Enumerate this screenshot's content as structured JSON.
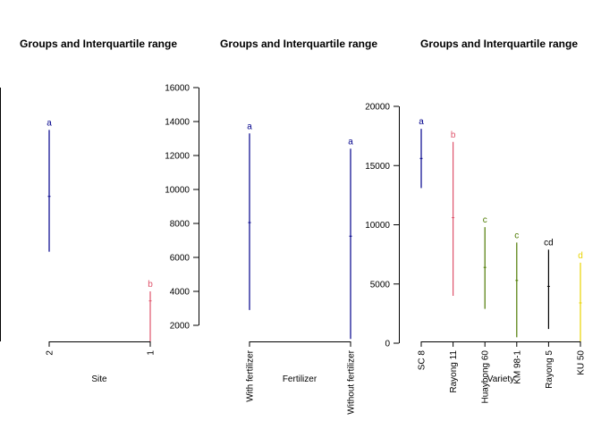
{
  "chart_data": [
    {
      "type": "line",
      "title": "Groups and Interquartile range",
      "xlabel": "Site",
      "ylabel": "",
      "y_axis_shown": false,
      "ylim": [
        1200,
        16000
      ],
      "categories": [
        "2",
        "1"
      ],
      "series": [
        {
          "category": "2",
          "median": 9700,
          "q1": 6500,
          "q3": 13550,
          "group": "a",
          "color": "#00008B"
        },
        {
          "category": "1",
          "median": 3650,
          "q1": 900,
          "q3": 4200,
          "group": "b",
          "color": "#DF536B"
        }
      ]
    },
    {
      "type": "line",
      "title": "Groups and Interquartile range",
      "xlabel": "Fertilizer",
      "ylabel": "",
      "ylim": [
        1200,
        16000
      ],
      "yticks": [
        2000,
        4000,
        6000,
        8000,
        10000,
        12000,
        14000,
        16000
      ],
      "categories": [
        "With fertilizer",
        "Without fertilizer"
      ],
      "series": [
        {
          "category": "With fertilizer",
          "median": 8050,
          "q1": 2900,
          "q3": 13300,
          "group": "a",
          "color": "#00008B"
        },
        {
          "category": "Without fertilizer",
          "median": 7250,
          "q1": 1200,
          "q3": 12400,
          "group": "a",
          "color": "#00008B"
        }
      ]
    },
    {
      "type": "line",
      "title": "Groups and Interquartile range",
      "xlabel": "Variety",
      "ylabel": "",
      "ylim": [
        0,
        20000
      ],
      "yticks": [
        0,
        5000,
        10000,
        15000,
        20000
      ],
      "categories": [
        "SC 8",
        "Rayong 11",
        "Huaybong 60",
        "KM 98-1",
        "Rayong 5",
        "KU 50"
      ],
      "series": [
        {
          "category": "SC 8",
          "median": 15600,
          "q1": 13100,
          "q3": 18100,
          "group": "a",
          "color": "#00008B"
        },
        {
          "category": "Rayong 11",
          "median": 10600,
          "q1": 4000,
          "q3": 17000,
          "group": "b",
          "color": "#DF536B"
        },
        {
          "category": "Huaybong 60",
          "median": 6400,
          "q1": 2900,
          "q3": 9800,
          "group": "c",
          "color": "#4D7A00"
        },
        {
          "category": "KM 98-1",
          "median": 5300,
          "q1": 500,
          "q3": 8500,
          "group": "c",
          "color": "#4D7A00"
        },
        {
          "category": "Rayong 5",
          "median": 4800,
          "q1": 1200,
          "q3": 7900,
          "group": "cd",
          "color": "#000000"
        },
        {
          "category": "KU 50",
          "median": 3400,
          "q1": 0,
          "q3": 6800,
          "group": "d",
          "color": "#E8D300"
        }
      ]
    }
  ]
}
